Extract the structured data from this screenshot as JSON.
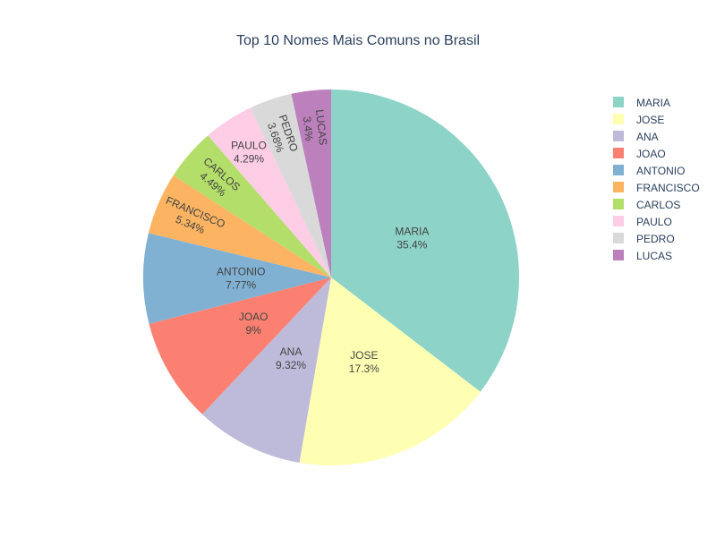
{
  "chart_data": {
    "type": "pie",
    "title": "Top 10 Nomes Mais Comuns no Brasil",
    "slices": [
      {
        "label": "MARIA",
        "percent": "35.4%",
        "value": 35.4,
        "color": "#8dd3c7"
      },
      {
        "label": "JOSE",
        "percent": "17.3%",
        "value": 17.3,
        "color": "#ffffb3"
      },
      {
        "label": "ANA",
        "percent": "9.32%",
        "value": 9.32,
        "color": "#bebada"
      },
      {
        "label": "JOAO",
        "percent": "9%",
        "value": 9.0,
        "color": "#fb8072"
      },
      {
        "label": "ANTONIO",
        "percent": "7.77%",
        "value": 7.77,
        "color": "#80b1d3"
      },
      {
        "label": "FRANCISCO",
        "percent": "5.34%",
        "value": 5.34,
        "color": "#fdb462"
      },
      {
        "label": "CARLOS",
        "percent": "4.49%",
        "value": 4.49,
        "color": "#b3de69"
      },
      {
        "label": "PAULO",
        "percent": "4.29%",
        "value": 4.29,
        "color": "#fccde5"
      },
      {
        "label": "PEDRO",
        "percent": "3.68%",
        "value": 3.68,
        "color": "#d9d9d9"
      },
      {
        "label": "LUCAS",
        "percent": "3.4%",
        "value": 3.4,
        "color": "#bc80bd"
      }
    ],
    "legend_position": "right",
    "direction": "clockwise"
  }
}
